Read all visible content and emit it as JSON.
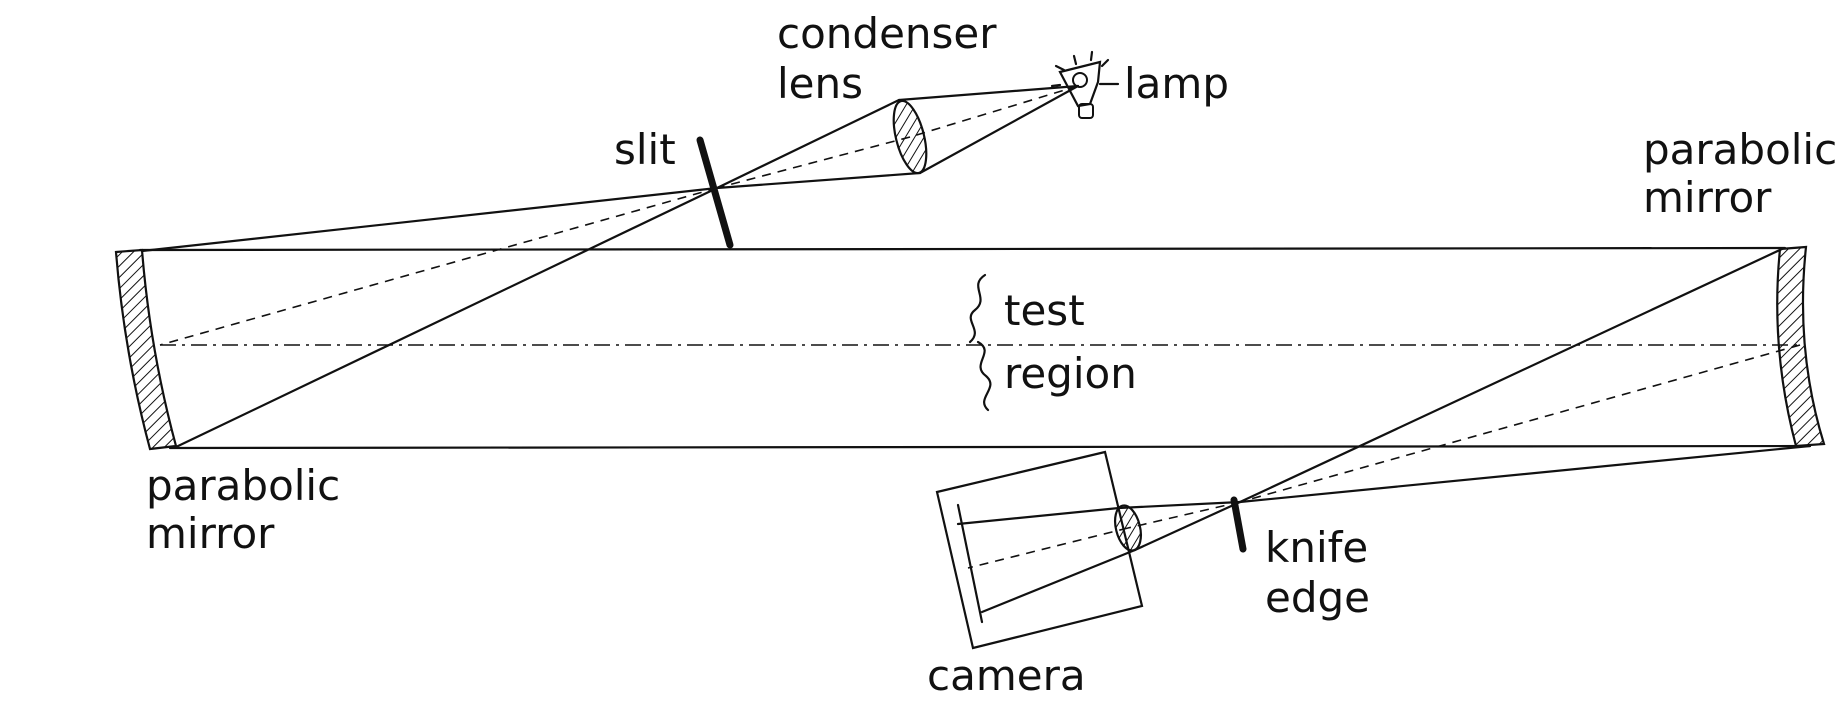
{
  "labels": {
    "condenser_line1": "condenser",
    "condenser_line2": "lens",
    "lamp": "lamp",
    "slit": "slit",
    "parabolic_right_line1": "parabolic",
    "parabolic_right_line2": "mirror",
    "parabolic_left_line1": "parabolic",
    "parabolic_left_line2": "mirror",
    "test_region_line1": "test",
    "test_region_line2": "region",
    "knife_line1": "knife",
    "knife_line2": "edge",
    "camera": "camera"
  },
  "colors": {
    "ink": "#111111",
    "background": "#ffffff"
  }
}
